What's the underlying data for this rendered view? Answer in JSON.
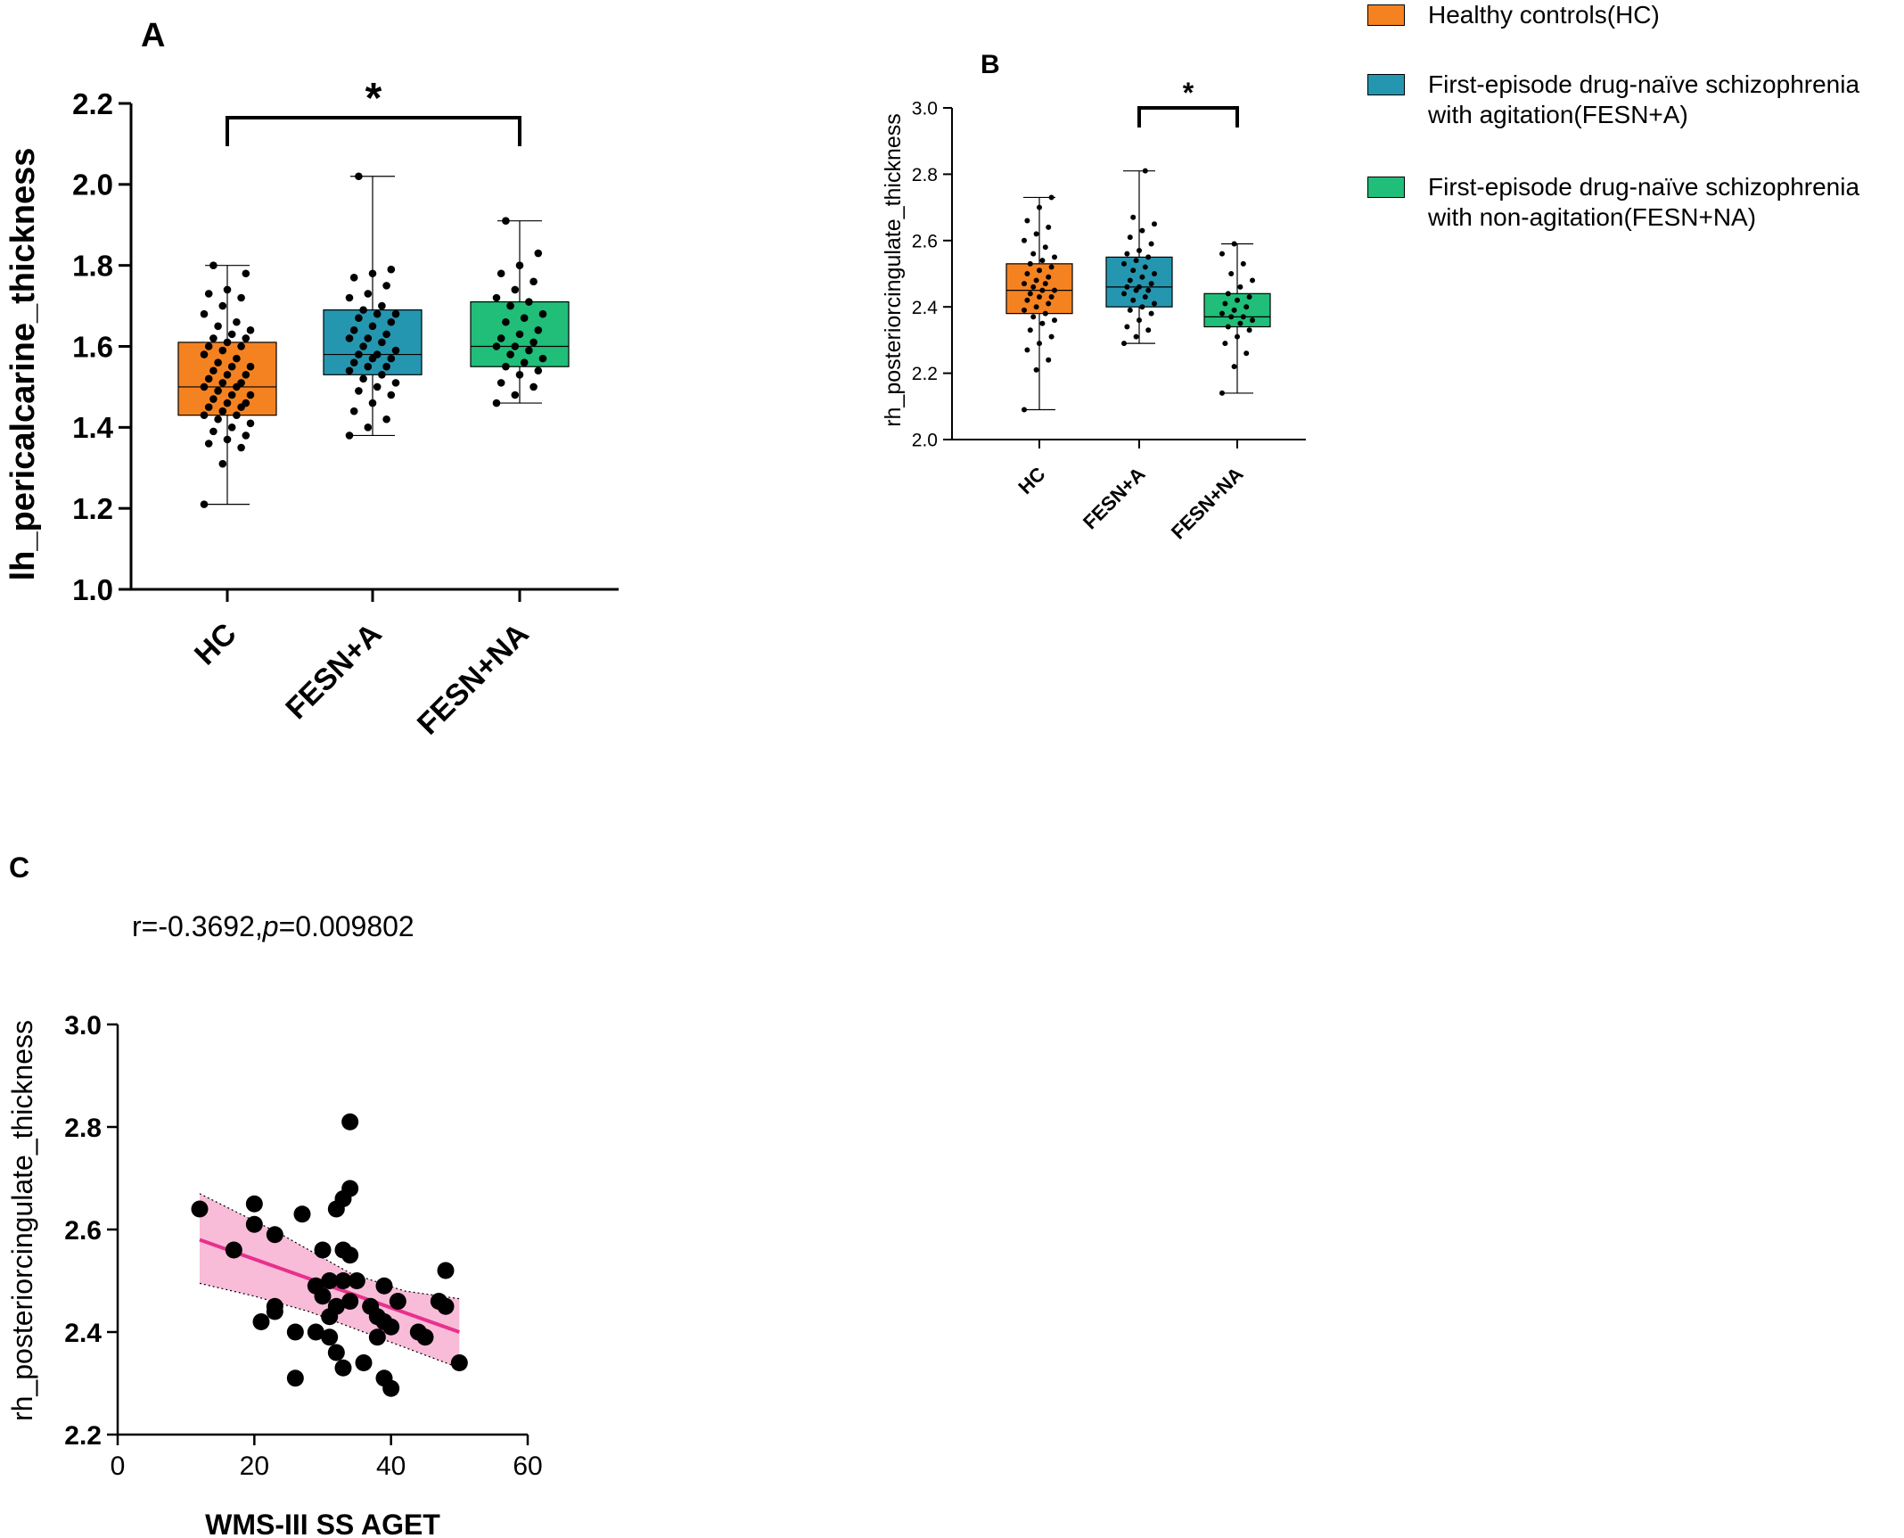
{
  "colors": {
    "HC": "#F58220",
    "FESN_A": "#2596B0",
    "FESN_NA": "#20BE78",
    "fit_line": "#E8308C",
    "ci_band": "#F8BCD8",
    "ink": "#000000"
  },
  "legend": {
    "items": [
      {
        "key": "HC",
        "label": "Healthy controls(HC)"
      },
      {
        "key": "FESN_A",
        "label": "First-episode drug-naïve schizophrenia\nwith agitation(FESN+A)"
      },
      {
        "key": "FESN_NA",
        "label": "First-episode drug-naïve schizophrenia\nwith non-agitation(FESN+NA)"
      }
    ]
  },
  "chart_data": [
    {
      "panel": "A",
      "type": "box",
      "ylabel": "lh_pericalcarine_thickness",
      "ylim": [
        1.0,
        2.2
      ],
      "yticks": [
        "1.0",
        "1.2",
        "1.4",
        "1.6",
        "1.8",
        "2.0",
        "2.2"
      ],
      "categories": [
        "HC",
        "FESN+A",
        "FESN+NA"
      ],
      "boxes": [
        {
          "name": "HC",
          "min": 1.21,
          "q1": 1.43,
          "median": 1.5,
          "q3": 1.61,
          "max": 1.8,
          "points": [
            1.21,
            1.31,
            1.35,
            1.36,
            1.37,
            1.38,
            1.39,
            1.4,
            1.41,
            1.42,
            1.43,
            1.43,
            1.44,
            1.45,
            1.45,
            1.46,
            1.46,
            1.47,
            1.48,
            1.48,
            1.49,
            1.5,
            1.5,
            1.51,
            1.51,
            1.52,
            1.53,
            1.53,
            1.54,
            1.55,
            1.55,
            1.56,
            1.57,
            1.58,
            1.59,
            1.6,
            1.6,
            1.61,
            1.62,
            1.62,
            1.63,
            1.64,
            1.65,
            1.66,
            1.68,
            1.7,
            1.72,
            1.73,
            1.74,
            1.78,
            1.8
          ]
        },
        {
          "name": "FESN+A",
          "min": 1.38,
          "q1": 1.53,
          "median": 1.58,
          "q3": 1.69,
          "max": 2.02,
          "points": [
            1.38,
            1.4,
            1.42,
            1.44,
            1.46,
            1.48,
            1.49,
            1.5,
            1.51,
            1.52,
            1.53,
            1.54,
            1.55,
            1.55,
            1.56,
            1.57,
            1.57,
            1.58,
            1.58,
            1.59,
            1.6,
            1.61,
            1.62,
            1.62,
            1.63,
            1.64,
            1.65,
            1.66,
            1.67,
            1.68,
            1.68,
            1.69,
            1.7,
            1.72,
            1.73,
            1.75,
            1.77,
            1.78,
            1.79,
            2.02
          ]
        },
        {
          "name": "FESN+NA",
          "min": 1.46,
          "q1": 1.55,
          "median": 1.6,
          "q3": 1.71,
          "max": 1.91,
          "points": [
            1.46,
            1.48,
            1.5,
            1.51,
            1.53,
            1.54,
            1.55,
            1.56,
            1.57,
            1.58,
            1.59,
            1.6,
            1.6,
            1.61,
            1.62,
            1.63,
            1.64,
            1.66,
            1.67,
            1.68,
            1.7,
            1.71,
            1.72,
            1.74,
            1.76,
            1.78,
            1.8,
            1.83,
            1.91
          ]
        }
      ],
      "significance": {
        "from": "HC",
        "to": "FESN+NA",
        "label": "*"
      }
    },
    {
      "panel": "B",
      "type": "box",
      "ylabel": "rh_posteriorcingulate_thickness",
      "ylim": [
        2.0,
        3.0
      ],
      "yticks": [
        "2.0",
        "2.2",
        "2.4",
        "2.6",
        "2.8",
        "3.0"
      ],
      "categories": [
        "HC",
        "FESN+A",
        "FESN+NA"
      ],
      "boxes": [
        {
          "name": "HC",
          "min": 2.09,
          "q1": 2.38,
          "median": 2.45,
          "q3": 2.53,
          "max": 2.73,
          "points": [
            2.09,
            2.21,
            2.24,
            2.27,
            2.29,
            2.31,
            2.33,
            2.35,
            2.36,
            2.37,
            2.38,
            2.39,
            2.4,
            2.41,
            2.42,
            2.43,
            2.43,
            2.44,
            2.45,
            2.45,
            2.46,
            2.47,
            2.47,
            2.48,
            2.49,
            2.5,
            2.51,
            2.52,
            2.53,
            2.54,
            2.55,
            2.56,
            2.58,
            2.6,
            2.62,
            2.64,
            2.66,
            2.7,
            2.73
          ]
        },
        {
          "name": "FESN+A",
          "min": 2.29,
          "q1": 2.4,
          "median": 2.46,
          "q3": 2.55,
          "max": 2.81,
          "points": [
            2.29,
            2.31,
            2.33,
            2.34,
            2.36,
            2.38,
            2.39,
            2.4,
            2.41,
            2.42,
            2.43,
            2.44,
            2.45,
            2.45,
            2.46,
            2.46,
            2.47,
            2.48,
            2.49,
            2.5,
            2.51,
            2.52,
            2.53,
            2.54,
            2.55,
            2.56,
            2.57,
            2.59,
            2.61,
            2.63,
            2.65,
            2.67,
            2.81
          ]
        },
        {
          "name": "FESN+NA",
          "min": 2.14,
          "q1": 2.34,
          "median": 2.37,
          "q3": 2.44,
          "max": 2.59,
          "points": [
            2.14,
            2.22,
            2.26,
            2.29,
            2.31,
            2.33,
            2.34,
            2.35,
            2.36,
            2.37,
            2.37,
            2.38,
            2.39,
            2.4,
            2.41,
            2.42,
            2.43,
            2.44,
            2.46,
            2.48,
            2.5,
            2.53,
            2.56,
            2.59
          ]
        }
      ],
      "significance": {
        "from": "FESN+A",
        "to": "FESN+NA",
        "label": "*"
      }
    },
    {
      "panel": "C",
      "type": "scatter",
      "annotation_prefix": "r=-0.3692,",
      "annotation_p": "p",
      "annotation_suffix": "=0.009802",
      "xlabel": "WMS-III SS AGET",
      "ylabel": "rh_posteriorcingulate_thickness",
      "xlim": [
        0,
        60
      ],
      "ylim": [
        2.2,
        3.0
      ],
      "xticks": [
        "0",
        "20",
        "40",
        "60"
      ],
      "yticks": [
        "2.2",
        "2.4",
        "2.6",
        "2.8",
        "3.0"
      ],
      "points": [
        [
          12,
          2.64
        ],
        [
          17,
          2.56
        ],
        [
          20,
          2.65
        ],
        [
          20,
          2.61
        ],
        [
          21,
          2.42
        ],
        [
          23,
          2.59
        ],
        [
          23,
          2.45
        ],
        [
          23,
          2.44
        ],
        [
          26,
          2.4
        ],
        [
          26,
          2.31
        ],
        [
          27,
          2.63
        ],
        [
          29,
          2.49
        ],
        [
          29,
          2.4
        ],
        [
          30,
          2.56
        ],
        [
          30,
          2.47
        ],
        [
          31,
          2.5
        ],
        [
          31,
          2.43
        ],
        [
          31,
          2.39
        ],
        [
          32,
          2.64
        ],
        [
          32,
          2.36
        ],
        [
          32,
          2.45
        ],
        [
          33,
          2.66
        ],
        [
          33,
          2.56
        ],
        [
          33,
          2.5
        ],
        [
          33,
          2.33
        ],
        [
          34,
          2.81
        ],
        [
          34,
          2.68
        ],
        [
          34,
          2.55
        ],
        [
          34,
          2.46
        ],
        [
          35,
          2.5
        ],
        [
          36,
          2.34
        ],
        [
          37,
          2.45
        ],
        [
          38,
          2.43
        ],
        [
          38,
          2.39
        ],
        [
          39,
          2.42
        ],
        [
          39,
          2.49
        ],
        [
          39,
          2.31
        ],
        [
          40,
          2.29
        ],
        [
          40,
          2.41
        ],
        [
          41,
          2.46
        ],
        [
          44,
          2.4
        ],
        [
          45,
          2.39
        ],
        [
          47,
          2.46
        ],
        [
          48,
          2.52
        ],
        [
          48,
          2.45
        ],
        [
          50,
          2.34
        ]
      ],
      "fit": {
        "x": [
          12,
          50
        ],
        "y": [
          2.58,
          2.4
        ]
      },
      "ci_upper": [
        [
          12,
          2.67
        ],
        [
          24,
          2.59
        ],
        [
          34,
          2.515
        ],
        [
          42,
          2.48
        ],
        [
          50,
          2.465
        ]
      ],
      "ci_lower": [
        [
          12,
          2.495
        ],
        [
          20,
          2.47
        ],
        [
          28,
          2.44
        ],
        [
          36,
          2.4
        ],
        [
          44,
          2.36
        ],
        [
          50,
          2.33
        ]
      ]
    }
  ]
}
